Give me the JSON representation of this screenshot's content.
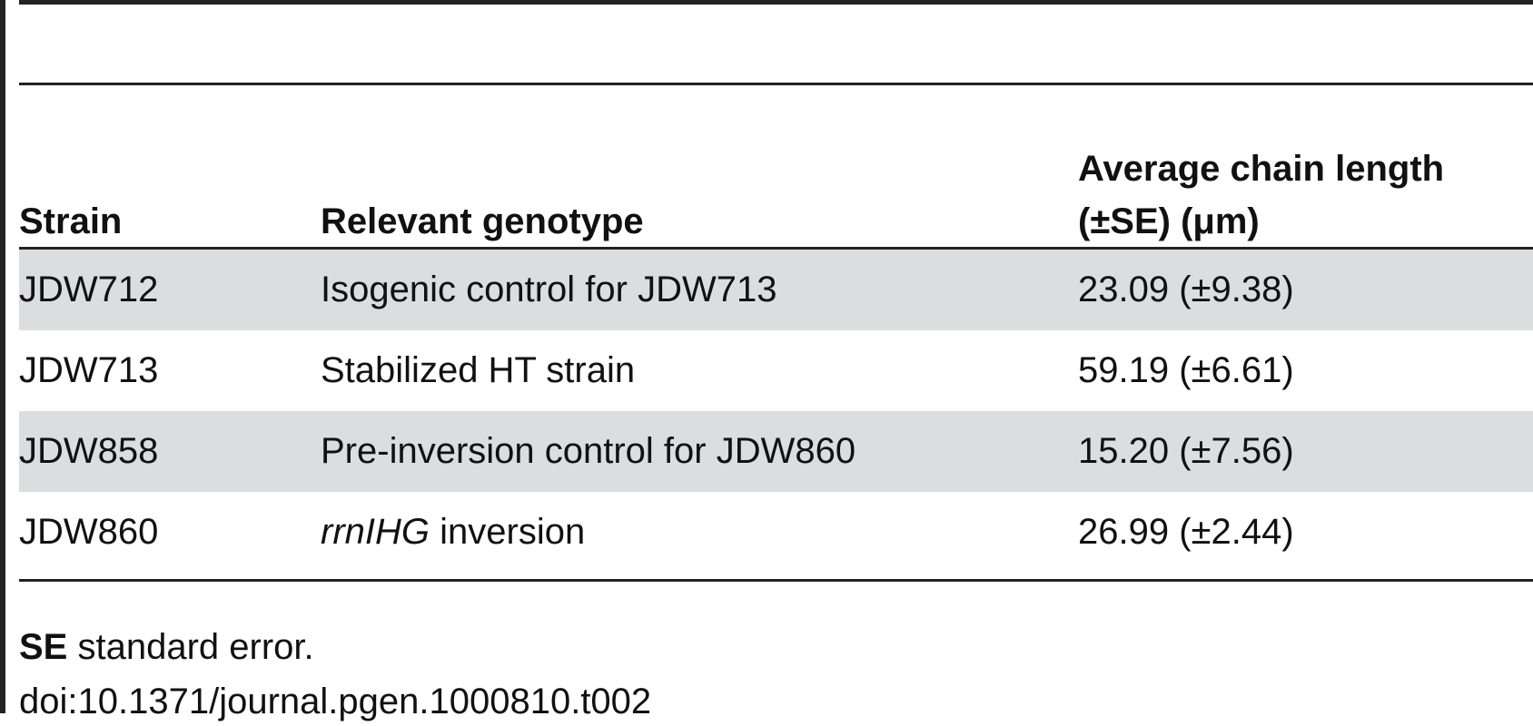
{
  "table": {
    "columns": [
      "Strain",
      "Relevant genotype",
      "Average chain length (±SE) (μm)"
    ],
    "rows": [
      [
        "JDW712",
        "Isogenic control for JDW713",
        "23.09 (±9.38)"
      ],
      [
        "JDW713",
        "Stabilized HT strain",
        "59.19 (±6.61)"
      ],
      [
        "JDW858",
        "Pre-inversion control for JDW860",
        "15.20 (±7.56)"
      ],
      [
        "JDW860",
        [
          "rrnIHG",
          "inversion"
        ],
        "26.99 (±2.44)"
      ]
    ]
  },
  "footnote": {
    "abbr": "SE",
    "text": "standard error."
  },
  "doi": "doi:10.1371/journal.pgen.1000810.t002"
}
